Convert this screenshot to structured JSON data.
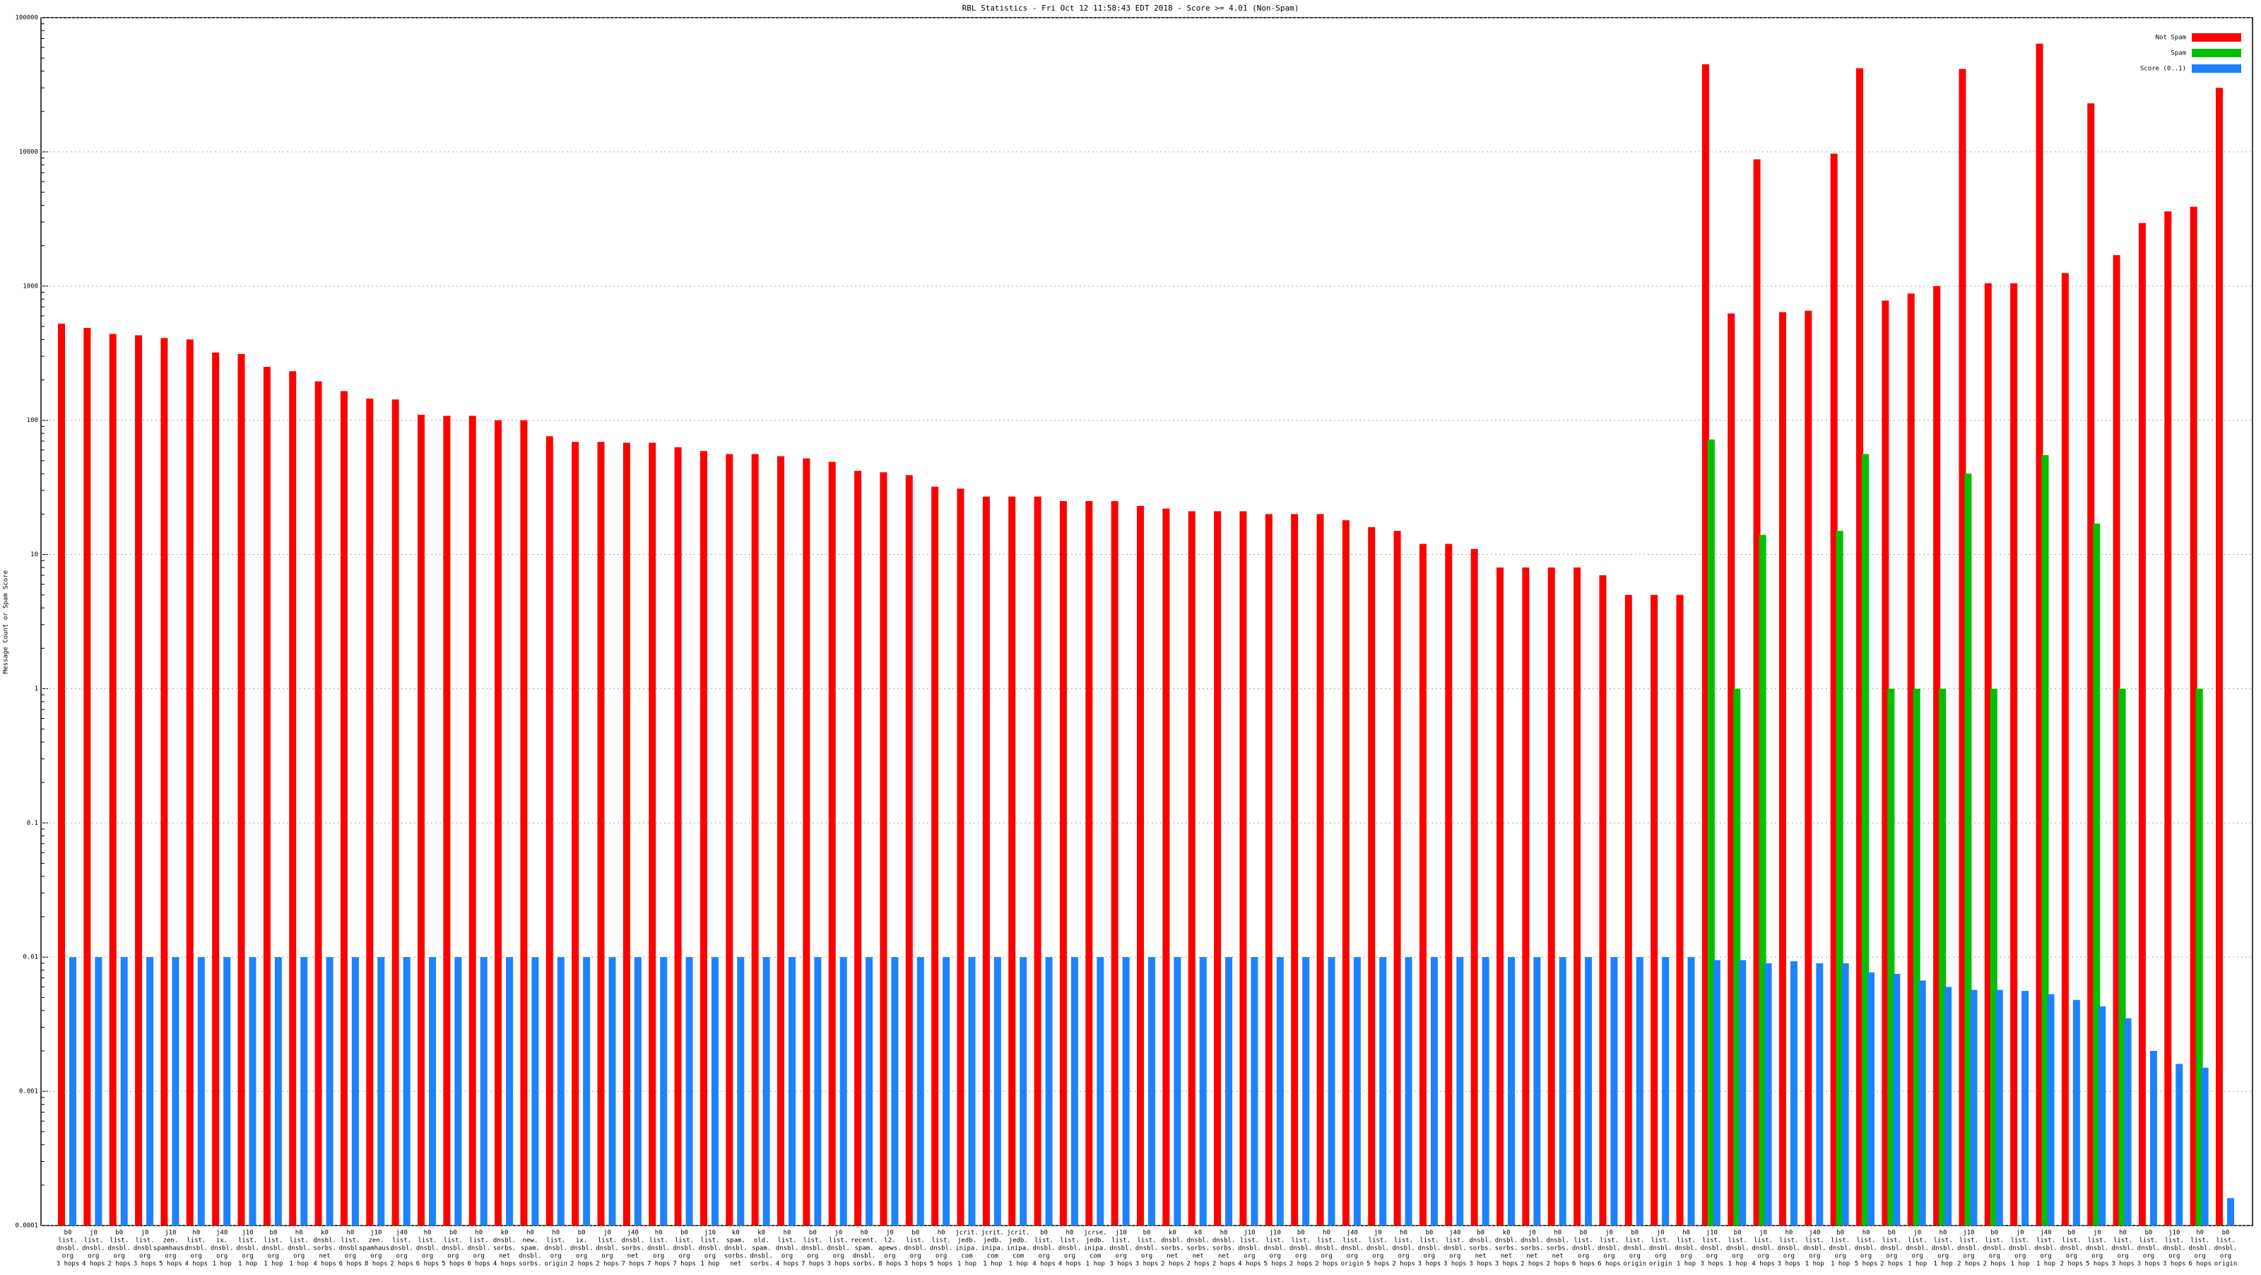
{
  "chart_data": {
    "type": "bar",
    "title": "RBL Statistics - Fri Oct 12 11:58:43 EDT 2018 - Score >= 4.01 (Non-Spam)",
    "y_label": "Message Count or Spam Score",
    "log_scale": true,
    "grid": true,
    "legend": "upper right",
    "ylim": [
      0.0001,
      100000
    ],
    "yticks": [
      0.0001,
      0.001,
      0.01,
      0.1,
      1,
      10,
      100,
      1000,
      10000,
      100000
    ],
    "categories": [
      [
        "b0",
        "list.",
        "dnsbl.",
        "org",
        "3 hops"
      ],
      [
        "j0",
        "list.",
        "dnsbl.",
        "org",
        "4 hops"
      ],
      [
        "b0",
        "list.",
        "dnsbl.",
        "org",
        "2 hops"
      ],
      [
        "j0",
        "list.",
        "dnsbl.",
        "org",
        "3 hops"
      ],
      [
        "j10",
        "zen.",
        "spamhaus.",
        "org",
        "5 hops"
      ],
      [
        "h0",
        "list.",
        "dnsbl.",
        "org",
        "4 hops"
      ],
      [
        "j40",
        "ix.",
        "dnsbl.",
        "org",
        "1 hop"
      ],
      [
        "j10",
        "list.",
        "dnsbl.",
        "org",
        "1 hop"
      ],
      [
        "b0",
        "list.",
        "dnsbl.",
        "org",
        "1 hop"
      ],
      [
        "h0",
        "list.",
        "dnsbl.",
        "org",
        "1 hop"
      ],
      [
        "k0",
        "dnsbl.",
        "sorbs.",
        "net",
        "4 hops"
      ],
      [
        "h0",
        "list.",
        "dnsbl.",
        "org",
        "6 hops"
      ],
      [
        "j10",
        "zen.",
        "spamhaus.",
        "org",
        "8 hops"
      ],
      [
        "j40",
        "list.",
        "dnsbl.",
        "org",
        "2 hops"
      ],
      [
        "h0",
        "list.",
        "dnsbl.",
        "org",
        "6 hops"
      ],
      [
        "b0",
        "list.",
        "dnsbl.",
        "org",
        "5 hops"
      ],
      [
        "h0",
        "list.",
        "dnsbl.",
        "org",
        "6 hops"
      ],
      [
        "k0",
        "dnsbl.",
        "sorbs.",
        "net",
        "4 hops"
      ],
      [
        "h0",
        "new.",
        "spam.",
        "dnsbl.",
        "sorbs."
      ],
      [
        "h0",
        "list.",
        "dnsbl.",
        "org",
        "origin"
      ],
      [
        "b0",
        "ix.",
        "dnsbl.",
        "org",
        "2 hops"
      ],
      [
        "j0",
        "list.",
        "dnsbl.",
        "org",
        "2 hops"
      ],
      [
        "j40",
        "dnsbl.",
        "sorbs.",
        "net",
        "7 hops"
      ],
      [
        "h0",
        "list.",
        "dnsbl.",
        "org",
        "7 hops"
      ],
      [
        "b0",
        "list.",
        "dnsbl.",
        "org",
        "7 hops"
      ],
      [
        "j10",
        "list.",
        "dnsbl.",
        "org",
        "1 hop"
      ],
      [
        "k0",
        "spam.",
        "dnsbl.",
        "sorbs.",
        "net"
      ],
      [
        "k0",
        "old.",
        "spam.",
        "dnsbl.",
        "sorbs."
      ],
      [
        "h0",
        "list.",
        "dnsbl.",
        "org",
        "4 hops"
      ],
      [
        "b0",
        "list.",
        "dnsbl.",
        "org",
        "7 hops"
      ],
      [
        "j0",
        "list.",
        "dnsbl.",
        "org",
        "3 hops"
      ],
      [
        "h0",
        "recent.",
        "spam.",
        "dnsbl.",
        "sorbs."
      ],
      [
        "j0",
        "l2.",
        "apews.",
        "org",
        "8 hops"
      ],
      [
        "b0",
        "list.",
        "dnsbl.",
        "org",
        "3 hops"
      ],
      [
        "h0",
        "list.",
        "dnsbl.",
        "org",
        "5 hops"
      ],
      [
        "jcrit.",
        "jedb.",
        "inipa.",
        "com",
        "1 hop"
      ],
      [
        "jcrit.",
        "jedb.",
        "inipa.",
        "com",
        "1 hop"
      ],
      [
        "jcrit.",
        "jedb.",
        "inipa.",
        "com",
        "1 hop"
      ],
      [
        "b0",
        "list.",
        "dnsbl.",
        "org",
        "4 hops"
      ],
      [
        "h0",
        "list.",
        "dnsbl.",
        "org",
        "4 hops"
      ],
      [
        "jcrse.",
        "jedb.",
        "inipa.",
        "com",
        "1 hop"
      ],
      [
        "j10",
        "list.",
        "dnsbl.",
        "org",
        "3 hops"
      ],
      [
        "b0",
        "list.",
        "dnsbl.",
        "org",
        "3 hops"
      ],
      [
        "k0",
        "dnsbl.",
        "sorbs.",
        "net",
        "2 hops"
      ],
      [
        "k0",
        "dnsbl.",
        "sorbs.",
        "net",
        "2 hops"
      ],
      [
        "h0",
        "dnsbl.",
        "sorbs.",
        "net",
        "2 hops"
      ],
      [
        "j10",
        "list.",
        "dnsbl.",
        "org",
        "4 hops"
      ],
      [
        "j10",
        "list.",
        "dnsbl.",
        "org",
        "5 hops"
      ],
      [
        "b0",
        "list.",
        "dnsbl.",
        "org",
        "2 hops"
      ],
      [
        "h0",
        "list.",
        "dnsbl.",
        "org",
        "2 hops"
      ],
      [
        "j40",
        "list.",
        "dnsbl.",
        "org",
        "origin"
      ],
      [
        "j0",
        "list.",
        "dnsbl.",
        "org",
        "5 hops"
      ],
      [
        "h0",
        "list.",
        "dnsbl.",
        "org",
        "2 hops"
      ],
      [
        "b0",
        "list.",
        "dnsbl.",
        "org",
        "3 hops"
      ],
      [
        "j40",
        "list.",
        "dnsbl.",
        "org",
        "3 hops"
      ],
      [
        "b0",
        "dnsbl.",
        "sorbs.",
        "net",
        "3 hops"
      ],
      [
        "k0",
        "dnsbl.",
        "sorbs.",
        "net",
        "3 hops"
      ],
      [
        "j0",
        "dnsbl.",
        "sorbs.",
        "net",
        "2 hops"
      ],
      [
        "h0",
        "dnsbl.",
        "sorbs.",
        "net",
        "2 hops"
      ],
      [
        "b0",
        "list.",
        "dnsbl.",
        "org",
        "6 hops"
      ],
      [
        "j0",
        "list.",
        "dnsbl.",
        "org",
        "6 hops"
      ],
      [
        "b0",
        "list.",
        "dnsbl.",
        "org",
        "origin"
      ],
      [
        "j0",
        "list.",
        "dnsbl.",
        "org",
        "origin"
      ],
      [
        "h0",
        "list.",
        "dnsbl.",
        "org",
        "1 hop"
      ],
      [
        "j10",
        "list.",
        "dnsbl.",
        "org",
        "3 hops"
      ],
      [
        "b0",
        "list.",
        "dnsbl.",
        "org",
        "1 hop"
      ],
      [
        "j0",
        "list.",
        "dnsbl.",
        "org",
        "4 hops"
      ],
      [
        "h0",
        "list.",
        "dnsbl.",
        "org",
        "3 hops"
      ],
      [
        "j40",
        "list.",
        "dnsbl.",
        "org",
        "1 hop"
      ],
      [
        "b0",
        "list.",
        "dnsbl.",
        "org",
        "1 hop"
      ],
      [
        "h0",
        "list.",
        "dnsbl.",
        "org",
        "5 hops"
      ],
      [
        "b0",
        "list.",
        "dnsbl.",
        "org",
        "2 hops"
      ],
      [
        "j0",
        "list.",
        "dnsbl.",
        "org",
        "1 hop"
      ],
      [
        "h0",
        "list.",
        "dnsbl.",
        "org",
        "1 hop"
      ],
      [
        "j10",
        "list.",
        "dnsbl.",
        "org",
        "2 hops"
      ],
      [
        "b0",
        "list.",
        "dnsbl.",
        "org",
        "2 hops"
      ],
      [
        "j0",
        "list.",
        "dnsbl.",
        "org",
        "1 hop"
      ],
      [
        "j40",
        "list.",
        "dnsbl.",
        "org",
        "1 hop"
      ],
      [
        "b0",
        "list.",
        "dnsbl.",
        "org",
        "2 hops"
      ],
      [
        "j0",
        "list.",
        "dnsbl.",
        "org",
        "5 hops"
      ],
      [
        "h0",
        "list.",
        "dnsbl.",
        "org",
        "3 hops"
      ],
      [
        "b0",
        "list.",
        "dnsbl.",
        "org",
        "3 hops"
      ],
      [
        "j10",
        "list.",
        "dnsbl.",
        "org",
        "3 hops"
      ],
      [
        "h0",
        "list.",
        "dnsbl.",
        "org",
        "6 hops"
      ],
      [
        "b0",
        "list.",
        "dnsbl.",
        "org",
        "origin"
      ]
    ],
    "series": [
      {
        "name": "Not Spam",
        "color": "#ff0000",
        "values": [
          525,
          488,
          440,
          430,
          410,
          400,
          320,
          312,
          250,
          232,
          195,
          165,
          145,
          143,
          110,
          108,
          108,
          100,
          100,
          76,
          69,
          69,
          68,
          68,
          63,
          59,
          56,
          56,
          54,
          52,
          49,
          42,
          41,
          39,
          32,
          31,
          27,
          27,
          27,
          25,
          25,
          25,
          23,
          22,
          21,
          21,
          21,
          20,
          20,
          20,
          18,
          16,
          15,
          12,
          12,
          11,
          8,
          8,
          8,
          8,
          7,
          5,
          5,
          5,
          45000,
          625,
          8800,
          640,
          655,
          9700,
          42000,
          780,
          880,
          1000,
          41500,
          1050,
          1050,
          64000,
          1250,
          23000,
          1700,
          2950,
          3600,
          3900,
          30000
        ]
      },
      {
        "name": "Spam",
        "color": "#00c000",
        "values": [
          null,
          null,
          null,
          null,
          null,
          null,
          null,
          null,
          null,
          null,
          null,
          null,
          null,
          null,
          null,
          null,
          null,
          null,
          null,
          null,
          null,
          null,
          null,
          null,
          null,
          null,
          null,
          null,
          null,
          null,
          null,
          null,
          null,
          null,
          null,
          null,
          null,
          null,
          null,
          null,
          null,
          null,
          null,
          null,
          null,
          null,
          null,
          null,
          null,
          null,
          null,
          null,
          null,
          null,
          null,
          null,
          null,
          null,
          null,
          null,
          null,
          null,
          null,
          null,
          72,
          1,
          14,
          null,
          null,
          15,
          56,
          1,
          1,
          1,
          40,
          1,
          null,
          55,
          null,
          17,
          1,
          null,
          null,
          1,
          null
        ]
      },
      {
        "name": "Score (0..1)",
        "color": "#1e82ff",
        "values": [
          0.01,
          0.01,
          0.01,
          0.01,
          0.01,
          0.01,
          0.01,
          0.01,
          0.01,
          0.01,
          0.01,
          0.01,
          0.01,
          0.01,
          0.01,
          0.01,
          0.01,
          0.01,
          0.01,
          0.01,
          0.01,
          0.01,
          0.01,
          0.01,
          0.01,
          0.01,
          0.01,
          0.01,
          0.01,
          0.01,
          0.01,
          0.01,
          0.01,
          0.01,
          0.01,
          0.01,
          0.01,
          0.01,
          0.01,
          0.01,
          0.01,
          0.01,
          0.01,
          0.01,
          0.01,
          0.01,
          0.01,
          0.01,
          0.01,
          0.01,
          0.01,
          0.01,
          0.01,
          0.01,
          0.01,
          0.01,
          0.01,
          0.01,
          0.01,
          0.01,
          0.01,
          0.01,
          0.01,
          0.01,
          0.0095,
          0.0095,
          0.009,
          0.0093,
          0.009,
          0.009,
          0.0077,
          0.0075,
          0.0067,
          0.006,
          0.0057,
          0.0057,
          0.0056,
          0.0053,
          0.0048,
          0.0043,
          0.0035,
          0.002,
          0.0016,
          0.0015,
          0.00016
        ]
      }
    ]
  }
}
